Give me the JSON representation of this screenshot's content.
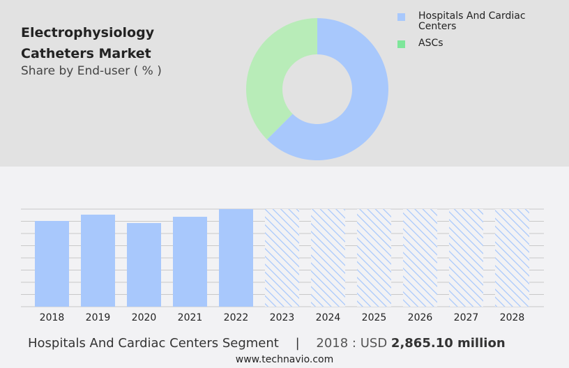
{
  "header": {
    "title": "Electrophysiology Catheters Market",
    "subtitle": "Share by End-user ( % )"
  },
  "chart_data": [
    {
      "type": "pie",
      "variant": "donut",
      "title": "Electrophysiology Catheters Market",
      "subtitle": "Share by End-user ( % )",
      "slices": [
        {
          "name": "Hospitals And Cardiac Centers",
          "value": 62.5,
          "color": "#a8c8fc"
        },
        {
          "name": "ASCs",
          "value": 37.5,
          "color": "#b8ecb8"
        }
      ],
      "legend_colors": [
        "#a8c8fc",
        "#7ee69a"
      ],
      "legend": "top-right"
    },
    {
      "type": "bar",
      "categories": [
        "2018",
        "2019",
        "2020",
        "2021",
        "2022",
        "2023",
        "2024",
        "2025",
        "2026",
        "2027",
        "2028"
      ],
      "values": [
        2865.1,
        3075,
        2795,
        3004,
        3261,
        null,
        null,
        null,
        null,
        null,
        null
      ],
      "forecast": [
        false,
        false,
        false,
        false,
        false,
        true,
        true,
        true,
        true,
        true,
        true
      ],
      "unit": "USD million",
      "ylim": [
        0,
        3261
      ],
      "grid": true,
      "color": "#a8c8fc"
    }
  ],
  "footer": {
    "segment": "Hospitals And Cardiac Centers Segment",
    "separator": "|",
    "year_label": "2018 : USD",
    "value": "2,865.10 million",
    "site": "www.technavio.com"
  }
}
